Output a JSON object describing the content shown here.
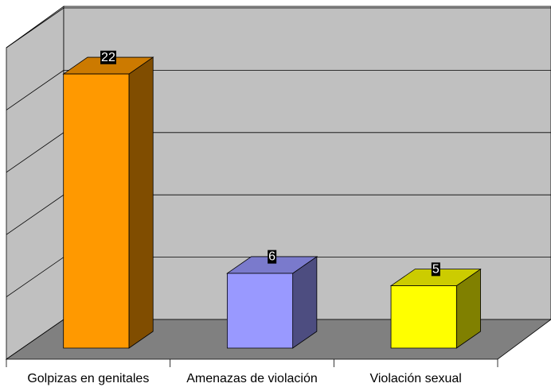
{
  "chart_data": {
    "type": "bar3d",
    "categories": [
      "Golpizas en genitales",
      "Amenazas de violación",
      "Violación sexual"
    ],
    "values": [
      22,
      6,
      5
    ],
    "colors": [
      "#ff9900",
      "#9999ff",
      "#ffff00"
    ],
    "ylim": [
      0,
      25
    ],
    "yticks": [
      0,
      5,
      10,
      15,
      20,
      25
    ],
    "grid": true
  }
}
